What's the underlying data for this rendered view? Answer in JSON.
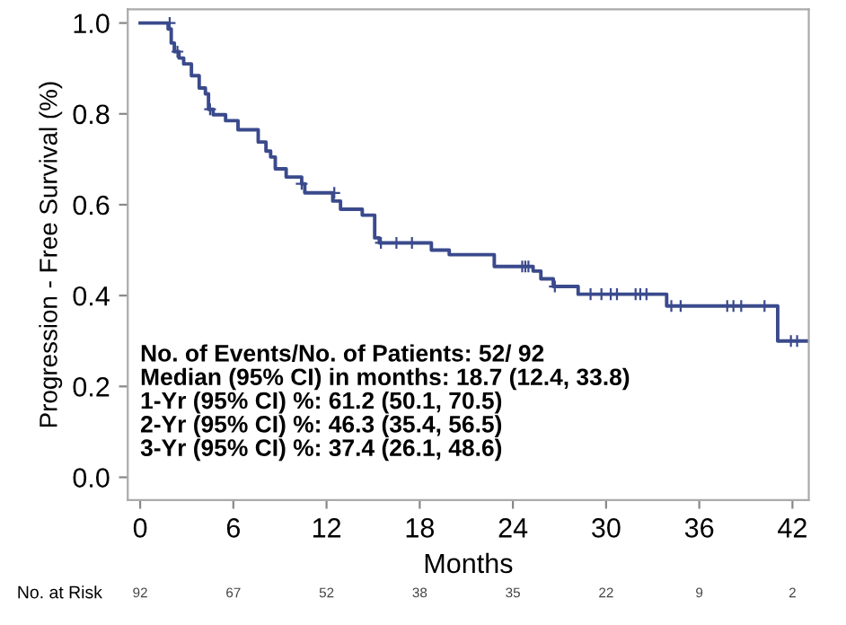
{
  "chart_data": {
    "type": "step",
    "xlabel": "Months",
    "ylabel": "Progression - Free Survival (%)",
    "xlim": [
      -0.8,
      43.05
    ],
    "ylim": [
      -0.05,
      1.03
    ],
    "xticks": [
      0,
      6,
      12,
      18,
      24,
      30,
      36,
      42
    ],
    "yticks": [
      {
        "value": 0,
        "label": "0.0"
      },
      {
        "value": 0.2,
        "label": "0.2"
      },
      {
        "value": 0.4,
        "label": "0.4"
      },
      {
        "value": 0.6,
        "label": "0.6"
      },
      {
        "value": 0.8,
        "label": "0.8"
      },
      {
        "value": 1,
        "label": "1.0"
      }
    ],
    "grid": false,
    "legend": false,
    "series": [
      {
        "color": "#3a4a8c",
        "x": [
          0,
          1.8,
          2.0,
          2.2,
          2.5,
          2.8,
          3.3,
          3.8,
          4.2,
          4.4,
          4.7,
          5.5,
          6.3,
          7.6,
          8.1,
          8.4,
          8.7,
          9.4,
          10.4,
          10.6,
          12.4,
          12.9,
          14.3,
          15.1,
          15.4,
          18.75,
          19.9,
          22.8,
          25.3,
          25.8,
          26.6,
          28.2,
          33.9,
          41.05,
          43.05
        ],
        "values": [
          1.0,
          0.987,
          0.956,
          0.937,
          0.923,
          0.91,
          0.884,
          0.857,
          0.844,
          0.81,
          0.798,
          0.785,
          0.765,
          0.738,
          0.718,
          0.705,
          0.679,
          0.661,
          0.646,
          0.626,
          0.608,
          0.59,
          0.577,
          0.527,
          0.516,
          0.5,
          0.49,
          0.464,
          0.454,
          0.437,
          0.42,
          0.403,
          0.377,
          0.3,
          0.3
        ]
      },
      {
        "type": "scatter",
        "marker": "cross",
        "color": "#3a4a8c",
        "x": [
          1.9,
          2.4,
          4.5,
          10.4,
          12.5,
          15.5,
          16.5,
          17.5,
          24.6,
          24.8,
          25.0,
          26.7,
          29.0,
          29.7,
          30.3,
          30.7,
          31.9,
          32.2,
          32.6,
          34.2,
          34.8,
          37.8,
          38.2,
          38.7,
          40.2,
          41.9,
          42.3
        ],
        "values": [
          1.0,
          0.937,
          0.81,
          0.646,
          0.626,
          0.516,
          0.516,
          0.516,
          0.464,
          0.464,
          0.464,
          0.42,
          0.403,
          0.403,
          0.403,
          0.403,
          0.403,
          0.403,
          0.403,
          0.377,
          0.377,
          0.377,
          0.377,
          0.377,
          0.377,
          0.3,
          0.3
        ]
      }
    ],
    "annotations": [
      "No. of Events/No. of Patients: 52/ 92",
      "Median (95% CI) in months: 18.7 (12.4, 33.8)",
      "1-Yr (95% CI) %: 61.2 (50.1, 70.5)",
      "2-Yr (95% CI) %: 46.3 (35.4, 56.5)",
      "3-Yr (95% CI) %: 37.4 (26.1, 48.6)",
      "No. at Risk",
      "92",
      "67",
      "52",
      "38",
      "35",
      "22",
      "9",
      "2"
    ]
  }
}
